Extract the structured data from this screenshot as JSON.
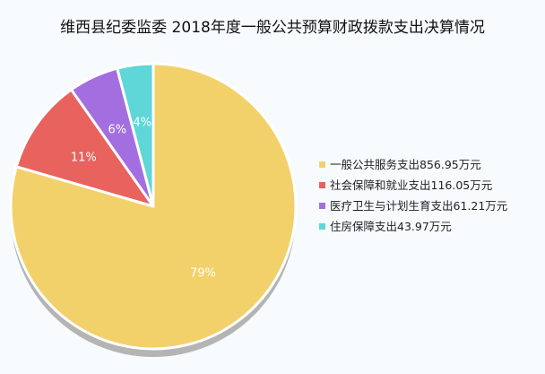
{
  "chart_data": {
    "type": "pie",
    "title": "维西县纪委监委 2018年度一般公共预算财政拨款支出决算情况",
    "categories": [
      "一般公共服务支出856.95万元",
      "社会保障和就业支出116.05万元",
      "医疗卫生与计划生育支出61.21万元",
      "住房保障支出43.97万元"
    ],
    "values": [
      856.95,
      116.05,
      61.21,
      43.97
    ],
    "percent_labels": [
      "79%",
      "11%",
      "6%",
      "4%"
    ],
    "colors": [
      "#f2d16b",
      "#e8625e",
      "#a36fe0",
      "#5fd6d8"
    ],
    "legend_position": "right"
  }
}
